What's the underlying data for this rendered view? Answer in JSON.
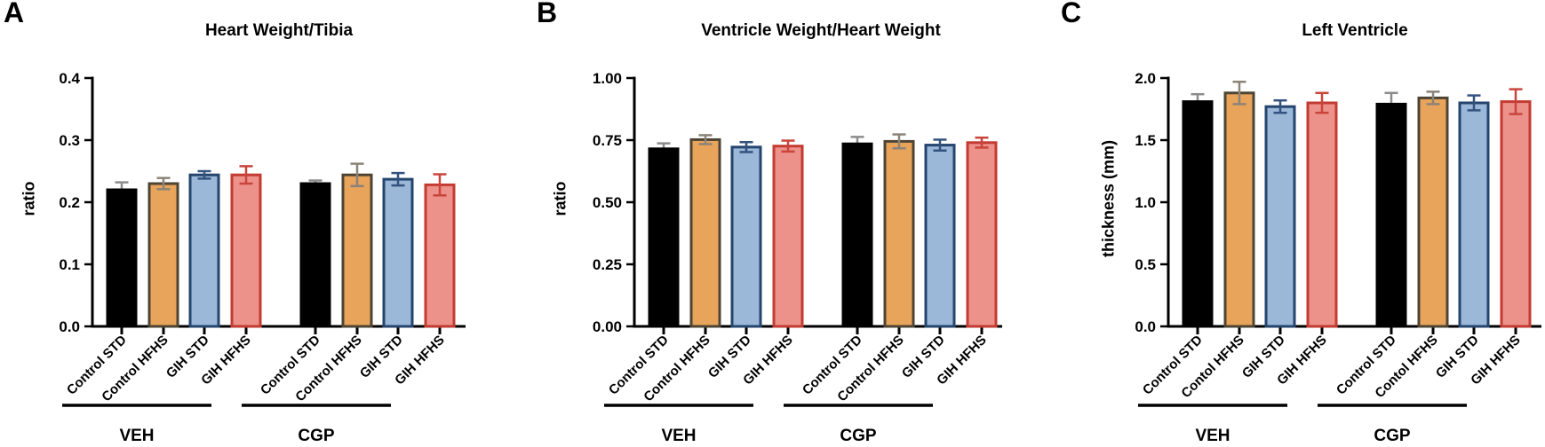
{
  "colors": {
    "black": {
      "fill": "#000000",
      "border": "#000000",
      "error": "#8C8C8C"
    },
    "orange": {
      "fill": "#E9A45B",
      "border": "#4E4434",
      "error": "#8B8378"
    },
    "blue": {
      "fill": "#9CB8D8",
      "border": "#24456E",
      "error": "#33527E"
    },
    "red": {
      "fill": "#EC928B",
      "border": "#C33B32",
      "error": "#C9453C"
    }
  },
  "chart_data": [
    {
      "type": "bar",
      "panel_letter": "A",
      "title": "Heart Weight/Tibia",
      "ylabel": "ratio",
      "ylim": [
        0,
        0.4
      ],
      "yticks": [
        0,
        0.1,
        0.2,
        0.3,
        0.4
      ],
      "ytick_labels": [
        "0.0",
        "0.1",
        "0.2",
        "0.3",
        "0.4"
      ],
      "grid": false,
      "legend": "none",
      "groups": [
        {
          "label": "VEH",
          "bars": [
            {
              "category": "Control STD",
              "value": 0.22,
              "error": 0.012,
              "color": "black"
            },
            {
              "category": "Control HFHS",
              "value": 0.23,
              "error": 0.009,
              "color": "orange"
            },
            {
              "category": "GIH STD",
              "value": 0.244,
              "error": 0.006,
              "color": "blue"
            },
            {
              "category": "GIH HFHS",
              "value": 0.244,
              "error": 0.014,
              "color": "red"
            }
          ]
        },
        {
          "label": "CGP",
          "bars": [
            {
              "category": "Control STD",
              "value": 0.23,
              "error": 0.005,
              "color": "black"
            },
            {
              "category": "Control HFHS",
              "value": 0.244,
              "error": 0.018,
              "color": "orange"
            },
            {
              "category": "GIH STD",
              "value": 0.237,
              "error": 0.01,
              "color": "blue"
            },
            {
              "category": "GIH HFHS",
              "value": 0.228,
              "error": 0.017,
              "color": "red"
            }
          ]
        }
      ]
    },
    {
      "type": "bar",
      "panel_letter": "B",
      "title": "Ventricle Weight/Heart Weight",
      "ylabel": "ratio",
      "ylim": [
        0,
        1.0
      ],
      "yticks": [
        0,
        0.25,
        0.5,
        0.75,
        1.0
      ],
      "ytick_labels": [
        "0.00",
        "0.25",
        "0.50",
        "0.75",
        "1.00"
      ],
      "grid": false,
      "legend": "none",
      "groups": [
        {
          "label": "VEH",
          "bars": [
            {
              "category": "Control STD",
              "value": 0.715,
              "error": 0.022,
              "color": "black"
            },
            {
              "category": "Control HFHS",
              "value": 0.752,
              "error": 0.018,
              "color": "orange"
            },
            {
              "category": "GIH STD",
              "value": 0.722,
              "error": 0.02,
              "color": "blue"
            },
            {
              "category": "GIH HFHS",
              "value": 0.726,
              "error": 0.022,
              "color": "red"
            }
          ]
        },
        {
          "label": "CGP",
          "bars": [
            {
              "category": "Control STD",
              "value": 0.735,
              "error": 0.028,
              "color": "black"
            },
            {
              "category": "Control HFHS",
              "value": 0.745,
              "error": 0.028,
              "color": "orange"
            },
            {
              "category": "GIH STD",
              "value": 0.73,
              "error": 0.022,
              "color": "blue"
            },
            {
              "category": "GIH HFHS",
              "value": 0.74,
              "error": 0.02,
              "color": "red"
            }
          ]
        }
      ]
    },
    {
      "type": "bar",
      "panel_letter": "C",
      "title": "Left Ventricle",
      "ylabel": "thickness (mm)",
      "ylim": [
        0,
        2.0
      ],
      "yticks": [
        0,
        0.5,
        1.0,
        1.5,
        2.0
      ],
      "ytick_labels": [
        "0.0",
        "0.5",
        "1.0",
        "1.5",
        "2.0"
      ],
      "grid": false,
      "legend": "none",
      "groups": [
        {
          "label": "VEH",
          "bars": [
            {
              "category": "Control STD",
              "value": 1.81,
              "error": 0.06,
              "color": "black"
            },
            {
              "category": "Contol HFHS",
              "value": 1.88,
              "error": 0.09,
              "color": "orange"
            },
            {
              "category": "GIH STD",
              "value": 1.77,
              "error": 0.05,
              "color": "blue"
            },
            {
              "category": "GIH HFHS",
              "value": 1.8,
              "error": 0.08,
              "color": "red"
            }
          ]
        },
        {
          "label": "CGP",
          "bars": [
            {
              "category": "Control STD",
              "value": 1.79,
              "error": 0.09,
              "color": "black"
            },
            {
              "category": "Contol HFHS",
              "value": 1.84,
              "error": 0.05,
              "color": "orange"
            },
            {
              "category": "GIH STD",
              "value": 1.8,
              "error": 0.06,
              "color": "blue"
            },
            {
              "category": "GIH HFHS",
              "value": 1.81,
              "error": 0.1,
              "color": "red"
            }
          ]
        }
      ]
    }
  ]
}
